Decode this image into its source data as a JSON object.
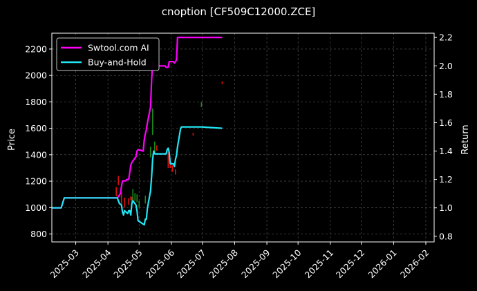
{
  "chart_data": {
    "type": "line",
    "title": "cnoption [CF509C12000.ZCE]",
    "ylabel": "Price",
    "y2label": "Return",
    "grid": true,
    "legend_placement": "top-left",
    "x_ticks": [
      "2025-03",
      "2025-04",
      "2025-05",
      "2025-06",
      "2025-07",
      "2025-08",
      "2025-09",
      "2025-10",
      "2025-11",
      "2025-12",
      "2026-01",
      "2026-02"
    ],
    "x_range": [
      "2025-02-06",
      "2026-02-09"
    ],
    "y_ticks": [
      800,
      1000,
      1200,
      1400,
      1600,
      1800,
      2000,
      2200
    ],
    "ylim": [
      740,
      2320
    ],
    "y2_ticks": [
      0.8,
      1.0,
      1.2,
      1.4,
      1.6,
      1.8,
      2.0,
      2.2
    ],
    "y2lim": [
      0.76,
      2.23
    ],
    "series": [
      {
        "name": "Swtool.com AI",
        "axis": "right",
        "color": "#ff00ff",
        "points": [
          [
            "2025-02-06",
            1.0
          ],
          [
            "2025-02-15",
            1.0
          ],
          [
            "2025-02-18",
            1.07
          ],
          [
            "2025-03-10",
            1.07
          ],
          [
            "2025-04-01",
            1.07
          ],
          [
            "2025-04-10",
            1.07
          ],
          [
            "2025-04-11",
            1.08
          ],
          [
            "2025-04-13",
            1.1
          ],
          [
            "2025-04-14",
            1.15
          ],
          [
            "2025-04-15",
            1.19
          ],
          [
            "2025-04-18",
            1.19
          ],
          [
            "2025-04-19",
            1.2
          ],
          [
            "2025-04-21",
            1.2
          ],
          [
            "2025-04-22",
            1.25
          ],
          [
            "2025-04-23",
            1.3
          ],
          [
            "2025-04-24",
            1.32
          ],
          [
            "2025-04-28",
            1.36
          ],
          [
            "2025-04-29",
            1.4
          ],
          [
            "2025-04-30",
            1.41
          ],
          [
            "2025-05-05",
            1.4
          ],
          [
            "2025-05-06",
            1.48
          ],
          [
            "2025-05-07",
            1.52
          ],
          [
            "2025-05-08",
            1.55
          ],
          [
            "2025-05-09",
            1.6
          ],
          [
            "2025-05-12",
            1.71
          ],
          [
            "2025-05-13",
            1.9
          ],
          [
            "2025-05-14",
            2.03
          ],
          [
            "2025-05-16",
            2.0
          ],
          [
            "2025-05-26",
            2.0
          ],
          [
            "2025-05-27",
            1.99
          ],
          [
            "2025-05-29",
            1.99
          ],
          [
            "2025-05-30",
            2.03
          ],
          [
            "2025-06-03",
            2.03
          ],
          [
            "2025-06-04",
            2.02
          ],
          [
            "2025-06-06",
            2.04
          ],
          [
            "2025-06-07",
            2.2
          ],
          [
            "2025-06-09",
            2.2
          ],
          [
            "2025-06-30",
            2.2
          ],
          [
            "2025-07-20",
            2.2
          ]
        ]
      },
      {
        "name": "Buy-and-Hold",
        "axis": "right",
        "color": "#22e5f5",
        "points": [
          [
            "2025-02-06",
            1.0
          ],
          [
            "2025-02-15",
            1.0
          ],
          [
            "2025-02-18",
            1.07
          ],
          [
            "2025-04-10",
            1.07
          ],
          [
            "2025-04-12",
            1.03
          ],
          [
            "2025-04-14",
            1.02
          ],
          [
            "2025-04-15",
            0.97
          ],
          [
            "2025-04-16",
            0.95
          ],
          [
            "2025-04-17",
            0.98
          ],
          [
            "2025-04-20",
            0.96
          ],
          [
            "2025-04-21",
            0.98
          ],
          [
            "2025-04-22",
            0.98
          ],
          [
            "2025-04-23",
            0.95
          ],
          [
            "2025-04-24",
            1.03
          ],
          [
            "2025-04-25",
            1.05
          ],
          [
            "2025-04-28",
            1.02
          ],
          [
            "2025-04-29",
            0.98
          ],
          [
            "2025-04-30",
            0.91
          ],
          [
            "2025-05-06",
            0.88
          ],
          [
            "2025-05-07",
            0.92
          ],
          [
            "2025-05-08",
            0.92
          ],
          [
            "2025-05-09",
            1.0
          ],
          [
            "2025-05-12",
            1.12
          ],
          [
            "2025-05-13",
            1.22
          ],
          [
            "2025-05-14",
            1.34
          ],
          [
            "2025-05-15",
            1.4
          ],
          [
            "2025-05-16",
            1.38
          ],
          [
            "2025-05-27",
            1.38
          ],
          [
            "2025-05-28",
            1.41
          ],
          [
            "2025-05-29",
            1.42
          ],
          [
            "2025-05-30",
            1.39
          ],
          [
            "2025-05-31",
            1.31
          ],
          [
            "2025-06-03",
            1.31
          ],
          [
            "2025-06-04",
            1.29
          ],
          [
            "2025-06-05",
            1.34
          ],
          [
            "2025-06-06",
            1.37
          ],
          [
            "2025-06-07",
            1.43
          ],
          [
            "2025-06-10",
            1.56
          ],
          [
            "2025-06-11",
            1.57
          ],
          [
            "2025-06-30",
            1.57
          ],
          [
            "2025-07-20",
            1.56
          ]
        ]
      }
    ],
    "price_bars": [
      {
        "date": "2025-04-09",
        "low": 1085,
        "high": 1155,
        "color": "#dd1111"
      },
      {
        "date": "2025-04-11",
        "low": 1170,
        "high": 1240,
        "color": "#dd1111"
      },
      {
        "date": "2025-04-14",
        "low": 1020,
        "high": 1120,
        "color": "#dd1111"
      },
      {
        "date": "2025-04-17",
        "low": 1000,
        "high": 1075,
        "color": "#dd1111"
      },
      {
        "date": "2025-04-21",
        "low": 1020,
        "high": 1070,
        "color": "#dd1111"
      },
      {
        "date": "2025-04-23",
        "low": 1055,
        "high": 1085,
        "color": "#dd1111"
      },
      {
        "date": "2025-04-24",
        "low": 1010,
        "high": 1080,
        "color": "#dd1111"
      },
      {
        "date": "2025-04-25",
        "low": 1050,
        "high": 1140,
        "color": "#1a8a1a"
      },
      {
        "date": "2025-04-27",
        "low": 1050,
        "high": 1110,
        "color": "#1a8a1a"
      },
      {
        "date": "2025-04-29",
        "low": 1040,
        "high": 1100,
        "color": "#1a8a1a"
      },
      {
        "date": "2025-05-01",
        "low": 1000,
        "high": 1050,
        "color": "#1a8a1a"
      },
      {
        "date": "2025-05-07",
        "low": 1030,
        "high": 1090,
        "color": "#1a8a1a"
      },
      {
        "date": "2025-05-12",
        "low": 1380,
        "high": 1460,
        "color": "#1a8a1a"
      },
      {
        "date": "2025-05-14",
        "low": 1550,
        "high": 1750,
        "color": "#1a8a1a"
      },
      {
        "date": "2025-05-16",
        "low": 1420,
        "high": 1500,
        "color": "#1a8a1a"
      },
      {
        "date": "2025-05-18",
        "low": 1430,
        "high": 1470,
        "color": "#dd1111"
      },
      {
        "date": "2025-05-29",
        "low": 1300,
        "high": 1420,
        "color": "#dd1111"
      },
      {
        "date": "2025-05-31",
        "low": 1300,
        "high": 1340,
        "color": "#dd1111"
      },
      {
        "date": "2025-06-02",
        "low": 1270,
        "high": 1320,
        "color": "#dd1111"
      },
      {
        "date": "2025-06-05",
        "low": 1250,
        "high": 1290,
        "color": "#dd1111"
      },
      {
        "date": "2025-06-22",
        "low": 1545,
        "high": 1565,
        "color": "#dd1111"
      },
      {
        "date": "2025-06-30",
        "low": 1760,
        "high": 1800,
        "color": "#1a8a1a"
      },
      {
        "date": "2025-07-20",
        "low": 1935,
        "high": 1955,
        "color": "#dd1111"
      }
    ]
  }
}
